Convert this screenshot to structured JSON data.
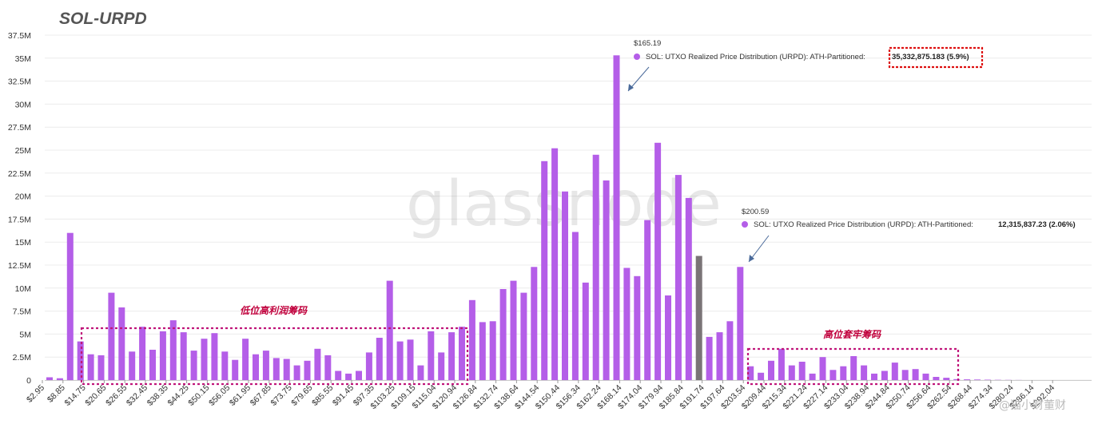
{
  "title": "SOL-URPD",
  "watermark": "glassnode",
  "chart_data": {
    "type": "bar",
    "ylim": [
      0,
      37500000
    ],
    "yticks": [
      {
        "value": 0,
        "label": "0"
      },
      {
        "value": 2500000,
        "label": "2.5M"
      },
      {
        "value": 5000000,
        "label": "5M"
      },
      {
        "value": 7500000,
        "label": "7.5M"
      },
      {
        "value": 10000000,
        "label": "10M"
      },
      {
        "value": 12500000,
        "label": "12.5M"
      },
      {
        "value": 15000000,
        "label": "15M"
      },
      {
        "value": 17500000,
        "label": "17.5M"
      },
      {
        "value": 20000000,
        "label": "20M"
      },
      {
        "value": 22500000,
        "label": "22.5M"
      },
      {
        "value": 25000000,
        "label": "25M"
      },
      {
        "value": 27500000,
        "label": "27.5M"
      },
      {
        "value": 30000000,
        "label": "30M"
      },
      {
        "value": 32500000,
        "label": "32.5M"
      },
      {
        "value": 35000000,
        "label": "35M"
      },
      {
        "value": 37500000,
        "label": "37.5M"
      }
    ],
    "xtick_labels": [
      "$2.95",
      "$8.85",
      "$14.75",
      "$20.65",
      "$26.55",
      "$32.45",
      "$38.35",
      "$44.25",
      "$50.15",
      "$56.05",
      "$61.95",
      "$67.85",
      "$73.75",
      "$79.65",
      "$85.55",
      "$91.45",
      "$97.35",
      "$103.25",
      "$109.15",
      "$115.04",
      "$120.94",
      "$126.84",
      "$132.74",
      "$138.64",
      "$144.54",
      "$150.44",
      "$156.34",
      "$162.24",
      "$168.14",
      "$174.04",
      "$179.94",
      "$185.84",
      "$191.74",
      "$197.64",
      "$203.54",
      "$209.44",
      "$215.34",
      "$221.24",
      "$227.14",
      "$233.04",
      "$238.94",
      "$244.84",
      "$250.74",
      "$256.64",
      "$262.54",
      "$268.44",
      "$274.34",
      "$280.24",
      "$286.14",
      "$292.04"
    ],
    "values": [
      300000,
      200000,
      16000000,
      4200000,
      2800000,
      2700000,
      9500000,
      7900000,
      3100000,
      5800000,
      3300000,
      5300000,
      6500000,
      5200000,
      3200000,
      4500000,
      5100000,
      3100000,
      2200000,
      4500000,
      2800000,
      3200000,
      2400000,
      2300000,
      1600000,
      2100000,
      3400000,
      2700000,
      1000000,
      700000,
      1000000,
      3000000,
      4600000,
      10800000,
      4200000,
      4400000,
      1600000,
      5300000,
      3000000,
      5200000,
      5800000,
      8700000,
      6300000,
      6400000,
      9900000,
      10800000,
      9500000,
      12300000,
      23800000,
      25200000,
      20500000,
      16100000,
      10600000,
      24500000,
      21700000,
      35300000,
      12200000,
      11300000,
      17400000,
      25800000,
      9200000,
      22300000,
      19800000,
      13500000,
      4700000,
      5200000,
      6400000,
      12300000,
      1500000,
      800000,
      2100000,
      3400000,
      1600000,
      2000000,
      700000,
      2500000,
      1100000,
      1500000,
      2600000,
      1600000,
      700000,
      1000000,
      1900000,
      1100000,
      1200000,
      700000,
      350000,
      250000,
      100000,
      80000,
      60000,
      40000,
      30000,
      20000,
      10000
    ],
    "highlight_index": 63,
    "bar_color": "#b45ee8",
    "highlight_color": "#7a7477",
    "series": [
      {
        "name": "SOL: UTXO Realized Price Distribution (URPD): ATH-Partitioned"
      }
    ]
  },
  "tooltips": [
    {
      "price": "$165.19",
      "label": "SOL: UTXO Realized Price Distribution (URPD): ATH-Partitioned:",
      "value": "35,332,875.183 (5.9%)"
    },
    {
      "price": "$200.59",
      "label": "SOL: UTXO Realized Price Distribution (URPD): ATH-Partitioned:",
      "value": "12,315,837.23 (2.06%)"
    }
  ],
  "annotations": {
    "low": "低位高利润筹码",
    "high": "高位套牢筹码"
  },
  "corner_logo": "@猫小财董财"
}
